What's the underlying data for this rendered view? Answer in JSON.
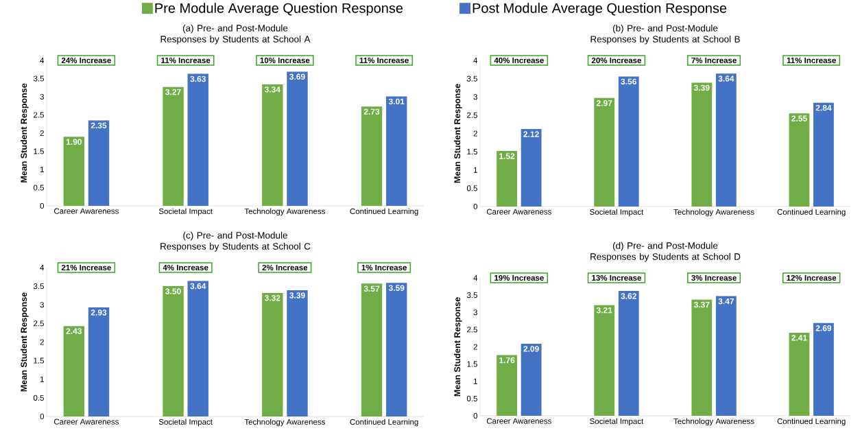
{
  "chart_data": [
    {
      "type": "bar",
      "title": "(a) Pre- and Post-Module Responses by Students at School A",
      "ylabel": "Mean Student Response",
      "categories": [
        "Career Awareness",
        "Societal Impact",
        "Technology Awareness",
        "Continued Learning"
      ],
      "series": [
        {
          "name": "Pre Module Average Question Response",
          "color": "#70ad47",
          "values": [
            1.9,
            3.27,
            3.34,
            2.73
          ],
          "value_labels": [
            "1.90",
            "3.27",
            "3.34",
            "2.73"
          ]
        },
        {
          "name": "Post Module Average Question Response",
          "color": "#4472c4",
          "values": [
            2.35,
            3.63,
            3.69,
            3.01
          ],
          "value_labels": [
            "2.35",
            "3.63",
            "3.69",
            "3.01"
          ]
        }
      ],
      "annotations": [
        "24% Increase",
        "11% Increase",
        "10% Increase",
        "11% Increase"
      ],
      "ylim": [
        0,
        4
      ],
      "yticks": [
        0,
        0.5,
        1,
        1.5,
        2,
        2.5,
        3,
        3.5,
        4
      ],
      "legend": "top"
    },
    {
      "type": "bar",
      "title": "(b) Pre- and Post-Module Responses by Students at School B",
      "ylabel": "Mean Student Response",
      "categories": [
        "Career Awareness",
        "Societal Impact",
        "Technology Awareness",
        "Continued Learning"
      ],
      "series": [
        {
          "color": "#70ad47",
          "values": [
            1.52,
            2.97,
            3.39,
            2.55
          ],
          "value_labels": [
            "1.52",
            "2.97",
            "3.39",
            "2.55"
          ]
        },
        {
          "color": "#4472c4",
          "values": [
            2.12,
            3.56,
            3.64,
            2.84
          ],
          "value_labels": [
            "2.12",
            "3.56",
            "3.64",
            "2.84"
          ]
        }
      ],
      "annotations": [
        "40% Increase",
        "20% Increase",
        "7% Increase",
        "11% Increase"
      ],
      "ylim": [
        0,
        4
      ],
      "yticks": [
        0,
        0.5,
        1,
        1.5,
        2,
        2.5,
        3,
        3.5,
        4
      ]
    },
    {
      "type": "bar",
      "title": "(c) Pre- and Post-Module Responses by Students at School C",
      "ylabel": "Mean Student Response",
      "categories": [
        "Career Awareness",
        "Societal Impact",
        "Technology Awareness",
        "Continued Learning"
      ],
      "series": [
        {
          "color": "#70ad47",
          "values": [
            2.43,
            3.5,
            3.32,
            3.57
          ],
          "value_labels": [
            "2.43",
            "3.50",
            "3.32",
            "3.57"
          ]
        },
        {
          "color": "#4472c4",
          "values": [
            2.93,
            3.64,
            3.39,
            3.59
          ],
          "value_labels": [
            "2.93",
            "3.64",
            "3.39",
            "3.59"
          ]
        }
      ],
      "annotations": [
        "21% Increase",
        "4% Increase",
        "2% Increase",
        "1% Increase"
      ],
      "ylim": [
        0,
        4
      ],
      "yticks": [
        0,
        0.5,
        1,
        1.5,
        2,
        2.5,
        3,
        3.5,
        4
      ]
    },
    {
      "type": "bar",
      "title": "(d) Pre- and Post-Module Responses by Students at School D",
      "ylabel": "Mean Student Response",
      "categories": [
        "Career Awareness",
        "Societal Impact",
        "Technology Awareness",
        "Continued Learning"
      ],
      "series": [
        {
          "color": "#70ad47",
          "values": [
            1.76,
            3.21,
            3.37,
            2.41
          ],
          "value_labels": [
            "1.76",
            "3.21",
            "3.37",
            "2.41"
          ]
        },
        {
          "color": "#4472c4",
          "values": [
            2.09,
            3.62,
            3.47,
            2.69
          ],
          "value_labels": [
            "2.09",
            "3.62",
            "3.47",
            "2.69"
          ]
        }
      ],
      "annotations": [
        "19% Increase",
        "13% Increase",
        "3% Increase",
        "12% Increase"
      ],
      "ylim": [
        0,
        4
      ],
      "yticks": [
        0,
        0.5,
        1,
        1.5,
        2,
        2.5,
        3,
        3.5,
        4
      ]
    }
  ]
}
